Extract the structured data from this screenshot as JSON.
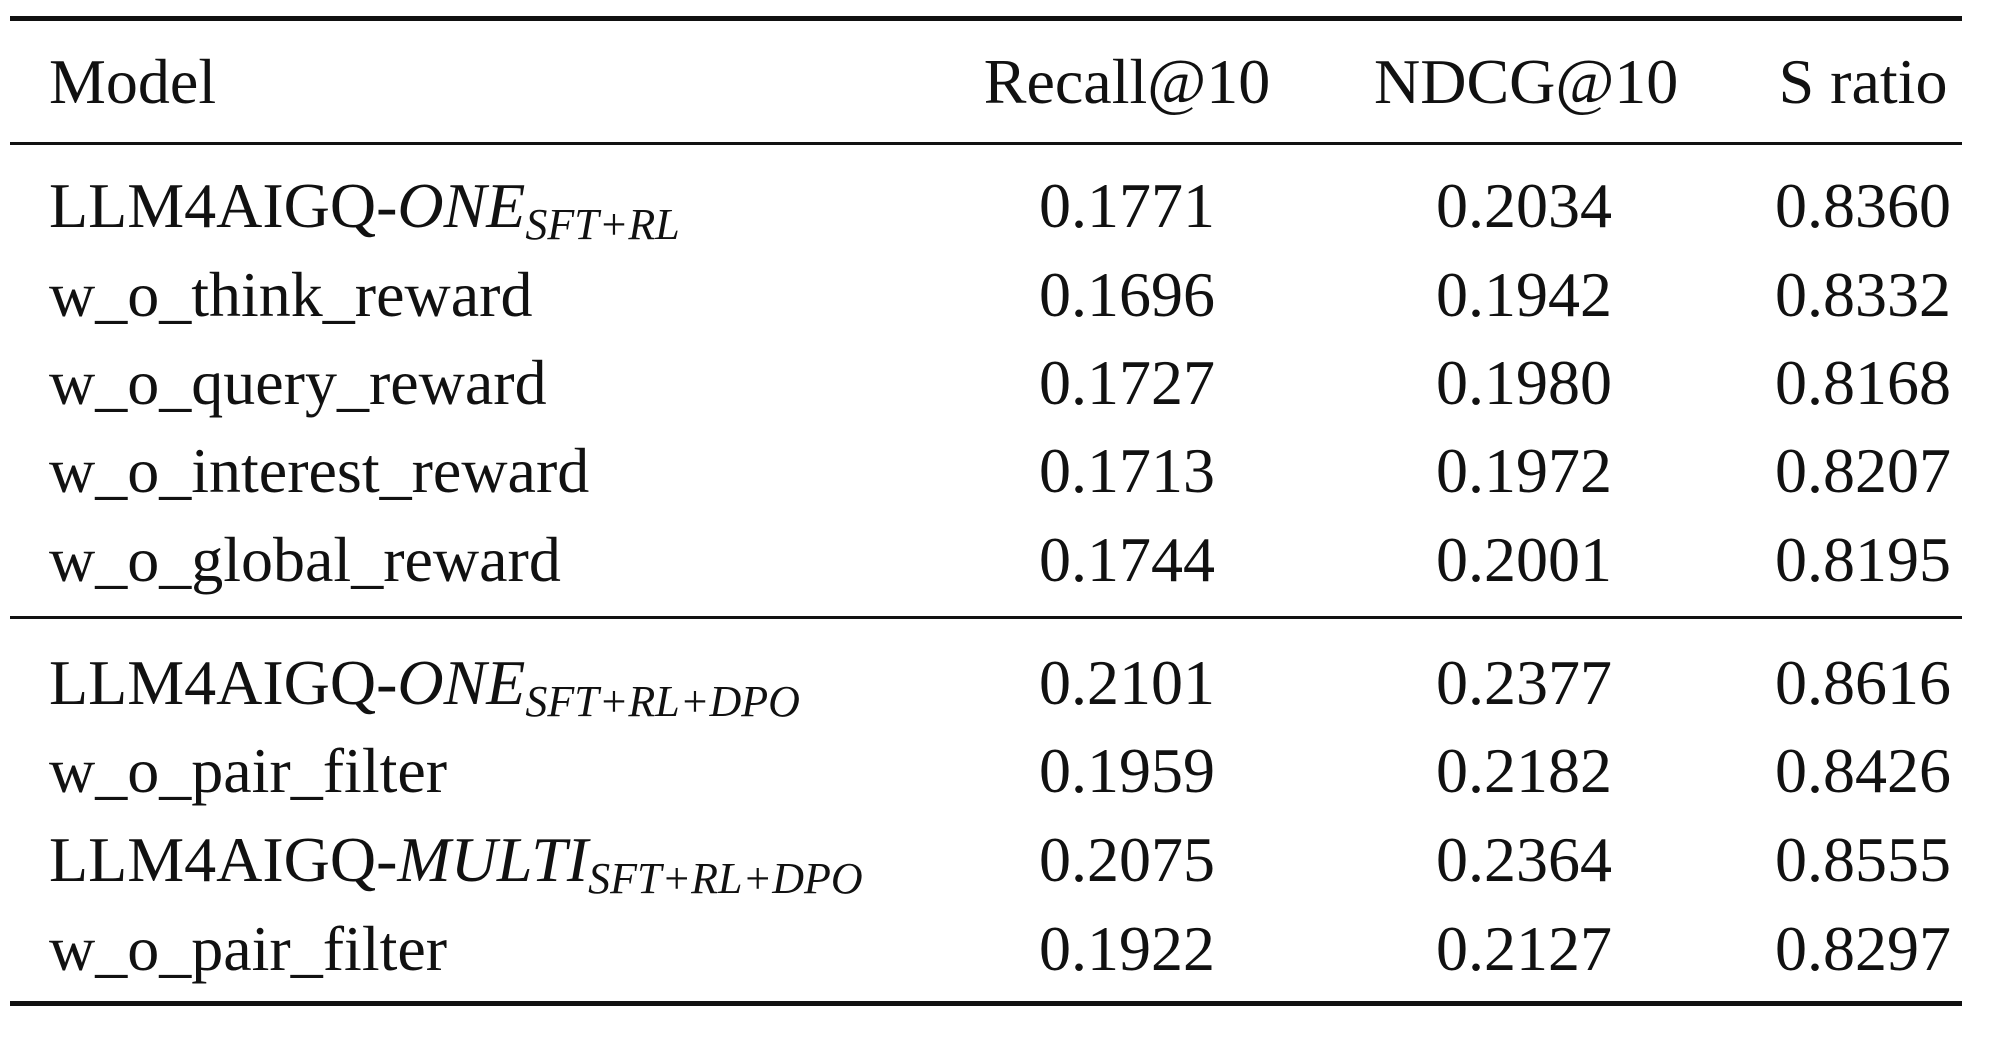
{
  "table": {
    "header": [
      "Model",
      "Recall@10",
      "NDCG@10",
      "S ratio"
    ],
    "groups": [
      {
        "rows": [
          {
            "model": {
              "text": "LLM4AIGQ-",
              "italic": "ONE",
              "sub": "SFT+RL"
            },
            "values": [
              "0.1771",
              "0.2034",
              "0.8360"
            ]
          },
          {
            "model": {
              "text": "w_o_think_reward"
            },
            "values": [
              "0.1696",
              "0.1942",
              "0.8332"
            ]
          },
          {
            "model": {
              "text": "w_o_query_reward"
            },
            "values": [
              "0.1727",
              "0.1980",
              "0.8168"
            ]
          },
          {
            "model": {
              "text": "w_o_interest_reward"
            },
            "values": [
              "0.1713",
              "0.1972",
              "0.8207"
            ]
          },
          {
            "model": {
              "text": "w_o_global_reward"
            },
            "values": [
              "0.1744",
              "0.2001",
              "0.8195"
            ]
          }
        ]
      },
      {
        "rows": [
          {
            "model": {
              "text": "LLM4AIGQ-",
              "italic": "ONE",
              "sub": "SFT+RL+DPO"
            },
            "values": [
              "0.2101",
              "0.2377",
              "0.8616"
            ]
          },
          {
            "model": {
              "text": "w_o_pair_filter"
            },
            "values": [
              "0.1959",
              "0.2182",
              "0.8426"
            ]
          },
          {
            "model": {
              "text": "LLM4AIGQ-",
              "italic": "MULTI",
              "sub": "SFT+RL+DPO"
            },
            "values": [
              "0.2075",
              "0.2364",
              "0.8555"
            ]
          },
          {
            "model": {
              "text": "w_o_pair_filter"
            },
            "values": [
              "0.1922",
              "0.2127",
              "0.8297"
            ]
          }
        ]
      }
    ]
  }
}
